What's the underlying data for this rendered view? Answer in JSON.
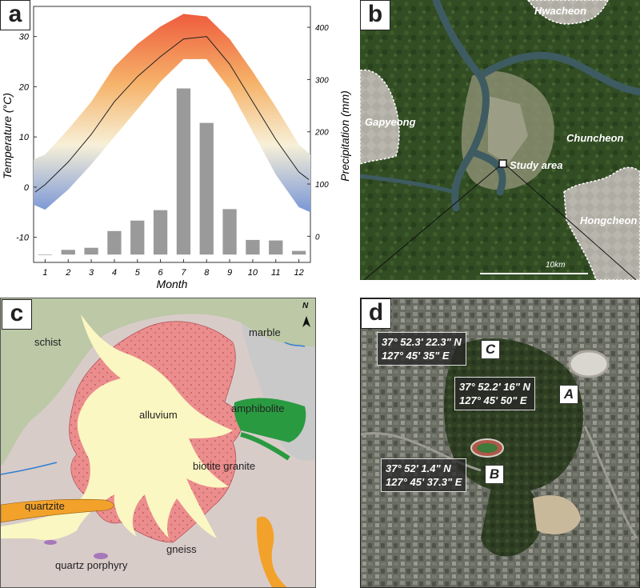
{
  "panels": {
    "a": {
      "label": "a"
    },
    "b": {
      "label": "b"
    },
    "c": {
      "label": "c"
    },
    "d": {
      "label": "d"
    }
  },
  "chart_data": {
    "type": "bar",
    "title": "",
    "xlabel": "Month",
    "ylabel_left": "Temperature (°C)",
    "ylabel_right": "Precipitation (mm)",
    "categories": [
      "1",
      "2",
      "3",
      "4",
      "5",
      "6",
      "7",
      "8",
      "9",
      "10",
      "11",
      "12"
    ],
    "left_ticks": [
      "30",
      "20",
      "10",
      "0",
      "-10"
    ],
    "right_ticks": [
      "400",
      "300",
      "200",
      "100",
      "0"
    ],
    "ylim_left": [
      -15,
      36
    ],
    "ylim_right": [
      -50,
      440
    ],
    "series": [
      {
        "name": "",
        "kind": "bar",
        "axis": "right",
        "values": [
          -36,
          -26,
          -22,
          10,
          30,
          50,
          283,
          217,
          52,
          -7,
          -8,
          -28
        ]
      },
      {
        "name": "",
        "kind": "line",
        "axis": "left",
        "values": [
          0.5,
          5,
          10.5,
          17,
          22,
          26,
          29.5,
          30,
          24.5,
          17,
          9.5,
          3
        ]
      }
    ],
    "band": {
      "upper": [
        6.5,
        11.5,
        17,
        24,
        28.5,
        32,
        34.5,
        34,
        29.5,
        23,
        16,
        8.5
      ],
      "lower": [
        -4.5,
        -0.5,
        4.5,
        10,
        15.5,
        21,
        25.5,
        25.5,
        19.5,
        11,
        2.5,
        -4
      ]
    }
  },
  "map_b": {
    "places": [
      "Hwacheon",
      "Gapyeong",
      "Chuncheon",
      "Hongcheon"
    ],
    "marker_label": "Study area",
    "scale": "10km"
  },
  "map_c": {
    "units": [
      "schist",
      "marble",
      "alluvium",
      "amphibolite",
      "biotite granite",
      "quartzite",
      "gneiss",
      "quartz porphyry"
    ],
    "north": "N",
    "colors": {
      "schist": "#bcc8a6",
      "marble": "#c9c9c9",
      "alluvium": "#fbf7c2",
      "granite": "#ec8d8d",
      "amphibolite": "#2a9a41",
      "quartzite": "#f2a22a",
      "gneiss": "#d8ccc9",
      "porphyry": "#a678b9"
    }
  },
  "map_d": {
    "sites": [
      {
        "id": "C",
        "lat": "37° 52.3' 22.3\" N",
        "lon": "127° 45' 35\" E"
      },
      {
        "id": "A",
        "lat": "37° 52.2' 16\" N",
        "lon": "127° 45' 50\" E"
      },
      {
        "id": "B",
        "lat": "37° 52' 1.4\" N",
        "lon": "127° 45' 37.3\" E"
      }
    ]
  }
}
